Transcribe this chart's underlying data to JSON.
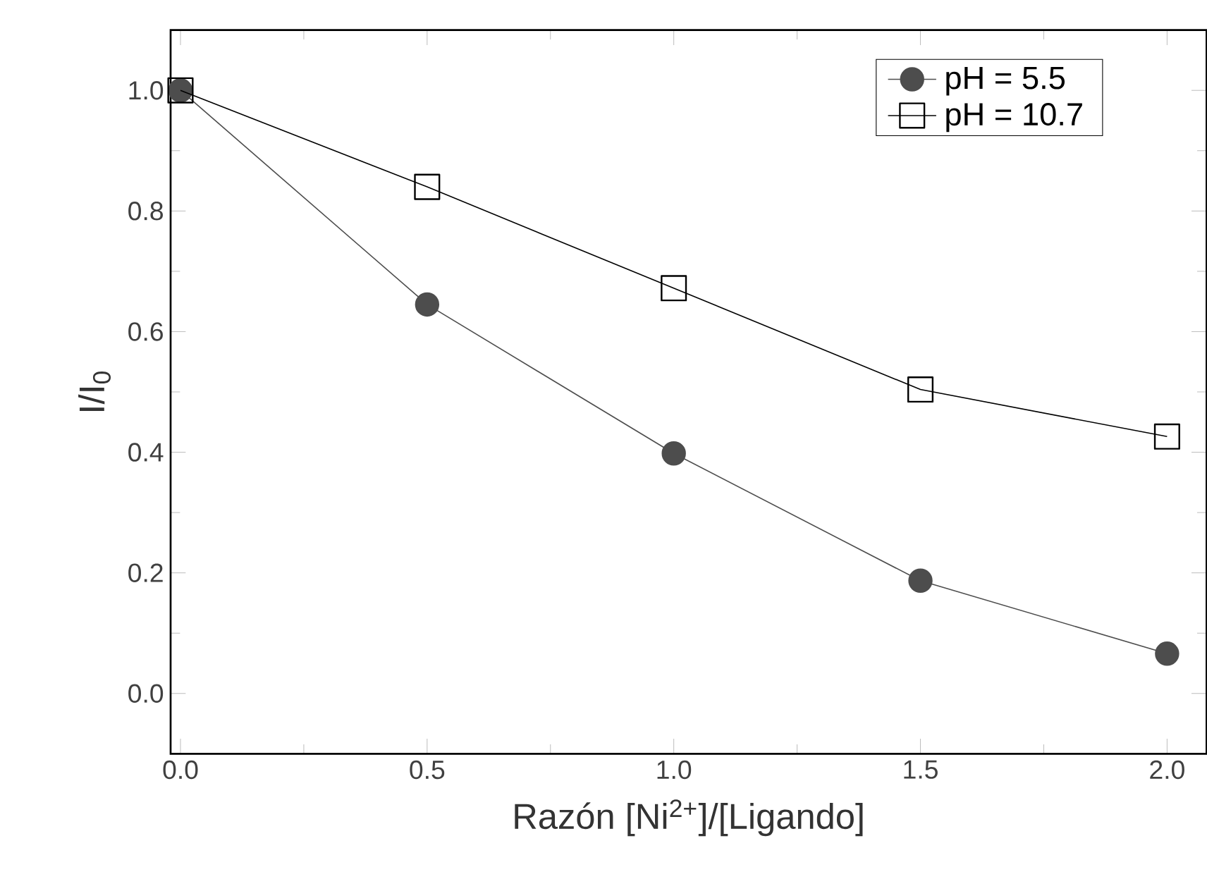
{
  "chart_data": {
    "type": "line",
    "xlabel": "Razón [Ni$^{2+}$]/[Ligando]",
    "ylabel": "I/I$_{0}$",
    "x": [
      0.0,
      0.5,
      1.0,
      1.5,
      2.0
    ],
    "series": [
      {
        "name": "pH = 5.5",
        "color": "#4d4d4d",
        "marker": "circle",
        "values": [
          1.0,
          0.645,
          0.398,
          0.187,
          0.066
        ]
      },
      {
        "name": "pH = 10.7",
        "color": "#000000",
        "marker": "square",
        "values": [
          1.0,
          0.84,
          0.672,
          0.504,
          0.426
        ]
      }
    ],
    "xlim": [
      -0.02,
      2.08
    ],
    "ylim": [
      -0.1,
      1.1
    ],
    "xticks": [
      {
        "value": 0.0,
        "label": "0.0"
      },
      {
        "value": 0.5,
        "label": "0.5"
      },
      {
        "value": 1.0,
        "label": "1.0"
      },
      {
        "value": 1.5,
        "label": "1.5"
      },
      {
        "value": 2.0,
        "label": "2.0"
      }
    ],
    "yticks": [
      {
        "value": 0.0,
        "label": "0.0"
      },
      {
        "value": 0.2,
        "label": "0.2"
      },
      {
        "value": 0.4,
        "label": "0.4"
      },
      {
        "value": 0.6,
        "label": "0.6"
      },
      {
        "value": 0.8,
        "label": "0.8"
      },
      {
        "value": 1.0,
        "label": "1.0"
      }
    ],
    "grid": false,
    "legend": "top right",
    "line_style": "solid"
  }
}
